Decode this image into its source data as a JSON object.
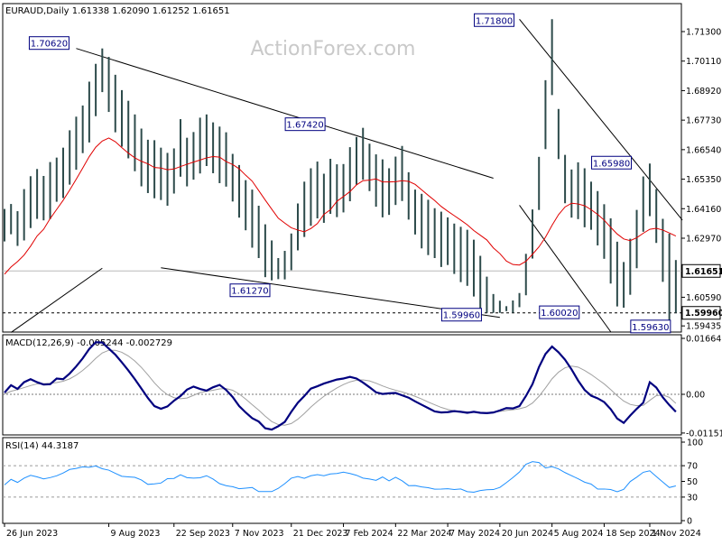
{
  "chart_data": [
    {
      "type": "candlestick",
      "symbol": "EURAUD",
      "timeframe": "Daily",
      "ohlc": [
        1.61338,
        1.6209,
        1.61252,
        1.61651
      ],
      "watermark": "ActionForex.com",
      "ylim": [
        1.5925,
        1.7185
      ],
      "x_ticks": [
        "26 Jun 2023",
        "9 Aug 2023",
        "22 Sep 2023",
        "7 Nov 2023",
        "21 Dec 2023",
        "7 Feb 2024",
        "22 Mar 2024",
        "7 May 2024",
        "20 Jun 2024",
        "5 Aug 2024",
        "18 Sep 2024",
        "1 Nov 2024"
      ],
      "y_ticks": [
        "1.71300",
        "1.70110",
        "1.68920",
        "1.67730",
        "1.66540",
        "1.65350",
        "1.64160",
        "1.62970",
        "1.60590",
        "1.59435"
      ],
      "price_tags": [
        "1.61651",
        "1.59960"
      ],
      "annotations": [
        "1.70620",
        "1.71800",
        "1.67420",
        "1.65980",
        "1.61270",
        "1.59960",
        "1.60020",
        "1.59630"
      ],
      "x": [
        "26 Jun 2023",
        "27 Jun 2023",
        "28 Jun 2023",
        "29 Jun 2023",
        "3 Jul 2023",
        "5 Jul 2023",
        "7 Jul 2023",
        "11 Jul 2023",
        "14 Jul 2023",
        "17 Jul 2023",
        "20 Jul 2023",
        "24 Jul 2023",
        "27 Jul 2023",
        "31 Jul 2023",
        "3 Aug 2023",
        "7 Aug 2023",
        "9 Aug 2023",
        "11 Aug 2023",
        "15 Aug 2023",
        "18 Aug 2023",
        "22 Aug 2023",
        "25 Aug 2023",
        "30 Aug 2023",
        "5 Sep 2023",
        "11 Sep 2023",
        "15 Sep 2023",
        "21 Sep 2023",
        "26 Sep 2023",
        "2 Oct 2023",
        "6 Oct 2023",
        "12 Oct 2023",
        "18 Oct 2023",
        "24 Oct 2023",
        "30 Oct 2023",
        "3 Nov 2023",
        "7 Nov 2023",
        "13 Nov 2023",
        "17 Nov 2023",
        "23 Nov 2023",
        "29 Nov 2023",
        "5 Dec 2023",
        "11 Dec 2023",
        "15 Dec 2023",
        "19 Dec 2023",
        "21 Dec 2023",
        "27 Dec 2023",
        "3 Jan 2024",
        "9 Jan 2024",
        "15 Jan 2024",
        "19 Jan 2024",
        "25 Jan 2024",
        "31 Jan 2024",
        "7 Feb 2024",
        "13 Feb 2024",
        "19 Feb 2024",
        "23 Feb 2024",
        "29 Feb 2024",
        "6 Mar 2024",
        "12 Mar 2024",
        "18 Mar 2024",
        "22 Mar 2024",
        "28 Mar 2024",
        "3 Apr 2024",
        "9 Apr 2024",
        "15 Apr 2024",
        "19 Apr 2024",
        "25 Apr 2024",
        "1 May 2024",
        "7 May 2024",
        "13 May 2024",
        "17 May 2024",
        "23 May 2024",
        "29 May 2024",
        "4 Jun 2024",
        "10 Jun 2024",
        "14 Jun 2024",
        "20 Jun 2024",
        "26 Jun 2024",
        "2 Jul 2024",
        "8 Jul 2024",
        "12 Jul 2024",
        "18 Jul 2024",
        "24 Jul 2024",
        "30 Jul 2024",
        "5 Aug 2024",
        "9 Aug 2024",
        "15 Aug 2024",
        "21 Aug 2024",
        "27 Aug 2024",
        "2 Sep 2024",
        "9 Sep 2024",
        "13 Sep 2024",
        "18 Sep 2024",
        "24 Sep 2024",
        "30 Sep 2024",
        "7 Oct 2024",
        "14 Oct 2024",
        "18 Oct 2024",
        "25 Oct 2024",
        "1 Nov 2024",
        "5 Nov 2024",
        "11 Nov 2024",
        "15 Nov 2024",
        "19 Nov 2024"
      ],
      "high": [
        1.6415,
        1.6435,
        1.6406,
        1.6495,
        1.6547,
        1.6576,
        1.6548,
        1.6604,
        1.6622,
        1.6662,
        1.6732,
        1.6787,
        1.6832,
        1.6928,
        1.7,
        1.7062,
        1.7028,
        1.6956,
        1.6894,
        1.6851,
        1.6796,
        1.6739,
        1.6694,
        1.6692,
        1.6662,
        1.6641,
        1.6659,
        1.6777,
        1.6702,
        1.6725,
        1.6783,
        1.6796,
        1.6764,
        1.6747,
        1.6724,
        1.6637,
        1.6592,
        1.6531,
        1.6493,
        1.6428,
        1.6353,
        1.6288,
        1.6217,
        1.6246,
        1.6316,
        1.6437,
        1.6525,
        1.6579,
        1.6606,
        1.6557,
        1.6617,
        1.6595,
        1.6596,
        1.6664,
        1.6705,
        1.6742,
        1.6678,
        1.6635,
        1.6615,
        1.6579,
        1.6626,
        1.6669,
        1.6563,
        1.6493,
        1.6476,
        1.6452,
        1.6418,
        1.6404,
        1.6381,
        1.6356,
        1.6343,
        1.6331,
        1.6291,
        1.6226,
        1.6142,
        1.6072,
        1.6045,
        1.6023,
        1.6046,
        1.6076,
        1.6234,
        1.6413,
        1.6625,
        1.6934,
        1.718,
        1.6818,
        1.6633,
        1.6574,
        1.6603,
        1.6579,
        1.6525,
        1.6487,
        1.6434,
        1.6377,
        1.6283,
        1.6201,
        1.6295,
        1.6411,
        1.6546,
        1.6598,
        1.6495,
        1.6375,
        1.6315,
        1.6209
      ],
      "low": [
        1.6284,
        1.6313,
        1.6266,
        1.6288,
        1.6338,
        1.6375,
        1.6369,
        1.6374,
        1.6444,
        1.6459,
        1.6513,
        1.6573,
        1.664,
        1.6683,
        1.6789,
        1.6886,
        1.6806,
        1.6724,
        1.6666,
        1.6619,
        1.6567,
        1.6506,
        1.6479,
        1.6458,
        1.6451,
        1.6428,
        1.6477,
        1.6545,
        1.6506,
        1.6533,
        1.6558,
        1.6588,
        1.6559,
        1.6519,
        1.6505,
        1.6445,
        1.638,
        1.6329,
        1.6259,
        1.6217,
        1.614,
        1.6127,
        1.6132,
        1.6131,
        1.6168,
        1.6248,
        1.6302,
        1.6347,
        1.6377,
        1.6359,
        1.6395,
        1.6382,
        1.6401,
        1.6446,
        1.6513,
        1.6533,
        1.6487,
        1.6424,
        1.6381,
        1.6391,
        1.6431,
        1.6447,
        1.6372,
        1.6312,
        1.6256,
        1.6229,
        1.6217,
        1.6181,
        1.6189,
        1.6153,
        1.612,
        1.6105,
        1.6062,
        1.6001,
        1.5996,
        1.5996,
        1.5996,
        1.6003,
        1.5996,
        1.6019,
        1.6067,
        1.6215,
        1.6411,
        1.6656,
        1.6874,
        1.6616,
        1.6438,
        1.638,
        1.6374,
        1.6341,
        1.6331,
        1.6268,
        1.6214,
        1.6114,
        1.6022,
        1.6017,
        1.6069,
        1.6176,
        1.6323,
        1.6386,
        1.6278,
        1.6121,
        1.5963,
        1.5996
      ],
      "ma": [
        1.6152,
        1.6181,
        1.6203,
        1.6229,
        1.6265,
        1.6306,
        1.6333,
        1.6376,
        1.6413,
        1.645,
        1.6491,
        1.6535,
        1.658,
        1.6626,
        1.6664,
        1.6689,
        1.6701,
        1.6686,
        1.6662,
        1.664,
        1.6621,
        1.6607,
        1.6597,
        1.6582,
        1.658,
        1.6573,
        1.6576,
        1.6586,
        1.6595,
        1.6604,
        1.6612,
        1.6621,
        1.6626,
        1.6624,
        1.6606,
        1.6594,
        1.6577,
        1.6551,
        1.6527,
        1.6489,
        1.6451,
        1.6414,
        1.6378,
        1.6358,
        1.6339,
        1.633,
        1.6323,
        1.6336,
        1.6356,
        1.6393,
        1.6412,
        1.6446,
        1.6465,
        1.6485,
        1.6512,
        1.6529,
        1.6531,
        1.6536,
        1.6524,
        1.6524,
        1.6525,
        1.6529,
        1.6526,
        1.6514,
        1.6492,
        1.647,
        1.6449,
        1.6425,
        1.6406,
        1.6388,
        1.637,
        1.6351,
        1.6328,
        1.6309,
        1.629,
        1.6258,
        1.6235,
        1.6205,
        1.6191,
        1.6189,
        1.6204,
        1.6232,
        1.6262,
        1.6301,
        1.6349,
        1.6392,
        1.6423,
        1.6438,
        1.6435,
        1.6428,
        1.6412,
        1.6393,
        1.637,
        1.6341,
        1.6314,
        1.6294,
        1.6287,
        1.6299,
        1.6317,
        1.6333,
        1.6337,
        1.633,
        1.6318,
        1.6306
      ],
      "macd_label": "MACD(12,26,9) -0.005244 -0.002729",
      "macd_ylim": [
        -0.0148,
        0.0178
      ],
      "macd_ticks": [
        "0.01664",
        "0.00",
        "-0.011515"
      ],
      "macd": [
        0.0005,
        0.0027,
        0.0016,
        0.0036,
        0.0045,
        0.0036,
        0.0029,
        0.003,
        0.0047,
        0.0045,
        0.0062,
        0.0083,
        0.0107,
        0.0135,
        0.0155,
        0.0154,
        0.0136,
        0.0118,
        0.0095,
        0.0071,
        0.0045,
        0.0017,
        -0.0011,
        -0.0035,
        -0.0043,
        -0.0036,
        -0.0019,
        -0.0005,
        0.0014,
        0.0023,
        0.0016,
        0.0011,
        0.0021,
        0.0028,
        0.0013,
        -0.0008,
        -0.0035,
        -0.0054,
        -0.0071,
        -0.0081,
        -0.0101,
        -0.0105,
        -0.0095,
        -0.0082,
        -0.0052,
        -0.0025,
        -0.0005,
        0.0017,
        0.0024,
        0.0032,
        0.0038,
        0.0044,
        0.0047,
        0.0052,
        0.0047,
        0.0035,
        0.0021,
        0.0006,
        0.0001,
        0.0003,
        0.0004,
        -0.0003,
        -0.001,
        -0.0021,
        -0.0031,
        -0.0041,
        -0.0051,
        -0.0054,
        -0.0053,
        -0.005,
        -0.0052,
        -0.0055,
        -0.0052,
        -0.0055,
        -0.0056,
        -0.0054,
        -0.0048,
        -0.0041,
        -0.0042,
        -0.0035,
        -0.0005,
        0.003,
        0.0081,
        0.012,
        0.0142,
        0.0125,
        0.0103,
        0.0074,
        0.0041,
        0.0013,
        -0.0004,
        -0.0012,
        -0.0023,
        -0.0044,
        -0.0072,
        -0.0085,
        -0.0063,
        -0.0043,
        -0.0025,
        0.0036,
        0.002,
        -0.0009,
        -0.0032,
        -0.0052
      ],
      "macd_signal": [
        0.0001,
        0.0009,
        0.0014,
        0.002,
        0.0026,
        0.0031,
        0.0032,
        0.0033,
        0.0035,
        0.0039,
        0.0046,
        0.0057,
        0.0071,
        0.0088,
        0.0107,
        0.0123,
        0.0131,
        0.0131,
        0.0125,
        0.0114,
        0.0099,
        0.008,
        0.0058,
        0.0034,
        0.0014,
        -0.0001,
        -0.001,
        -0.0013,
        -0.0011,
        -0.0003,
        0.0005,
        0.0009,
        0.0012,
        0.0016,
        0.0017,
        0.0012,
        0.0001,
        -0.0014,
        -0.0031,
        -0.0047,
        -0.0065,
        -0.0081,
        -0.009,
        -0.0092,
        -0.0087,
        -0.0074,
        -0.0057,
        -0.0038,
        -0.0021,
        -0.0006,
        0.0007,
        0.0019,
        0.0029,
        0.0037,
        0.0042,
        0.0043,
        0.004,
        0.0033,
        0.0025,
        0.0018,
        0.0012,
        0.0007,
        0.0001,
        -0.0006,
        -0.0014,
        -0.0023,
        -0.0031,
        -0.0039,
        -0.0045,
        -0.0049,
        -0.0051,
        -0.0052,
        -0.0053,
        -0.0054,
        -0.0054,
        -0.0053,
        -0.0051,
        -0.0048,
        -0.0046,
        -0.0043,
        -0.0038,
        -0.0026,
        -0.0006,
        0.0019,
        0.0046,
        0.0066,
        0.0079,
        0.0084,
        0.0081,
        0.0071,
        0.0059,
        0.0045,
        0.0031,
        0.0014,
        -0.0004,
        -0.002,
        -0.003,
        -0.0034,
        -0.0033,
        -0.0018,
        -0.0004,
        -0.0002,
        -0.0009,
        -0.0027
      ],
      "rsi_label": "RSI(14) 44.3187",
      "rsi_ylim": [
        0,
        100
      ],
      "rsi_ticks": [
        100,
        70,
        50,
        30,
        0
      ],
      "rsi": [
        45.5,
        52.6,
        48.7,
        54.1,
        57.7,
        55.7,
        53.2,
        54.8,
        57.1,
        60.7,
        65.2,
        66.5,
        68.5,
        68,
        69.7,
        66.1,
        64.3,
        60.3,
        56.5,
        55.8,
        55.2,
        51.8,
        46.2,
        46.9,
        47.9,
        53.5,
        53.8,
        58.4,
        54.8,
        54.2,
        54.6,
        57.2,
        52.9,
        47.1,
        44.5,
        43.2,
        40.7,
        41.4,
        42.2,
        37,
        37.1,
        37,
        41.1,
        47.1,
        54.1,
        56.2,
        53.9,
        57.2,
        58.6,
        57.2,
        59.5,
        60.1,
        61.8,
        60.1,
        57.8,
        54.2,
        53,
        51.3,
        55.6,
        50.7,
        55.3,
        50.8,
        44.6,
        44.7,
        43,
        42,
        40.1,
        40.2,
        40.6,
        39.6,
        40.4,
        36.9,
        36.2,
        38.3,
        39.4,
        39.6,
        42.3,
        48.4,
        54.9,
        61.9,
        71.8,
        75.1,
        74,
        67.1,
        68.8,
        65.9,
        61.2,
        57.2,
        53.4,
        49,
        46.6,
        40.2,
        40.3,
        39.6,
        36.8,
        39.9,
        49.8,
        55.4,
        61.6,
        63.5,
        56.2,
        49.1,
        42.2,
        44.3
      ]
    }
  ]
}
